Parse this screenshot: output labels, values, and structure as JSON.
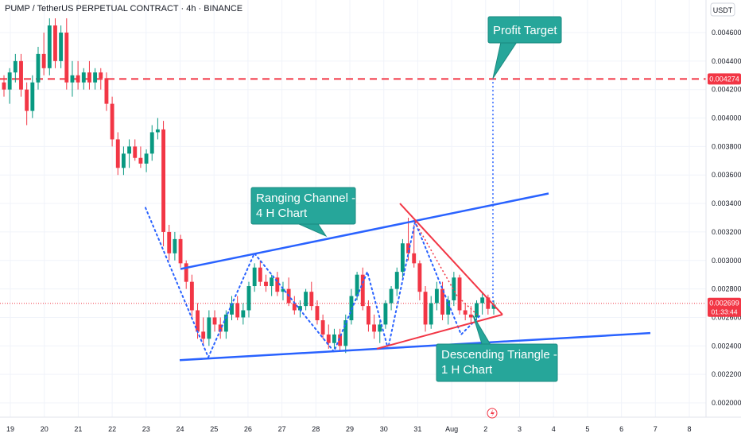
{
  "header": {
    "title": "PUMP / TetherUS PERPETUAL CONTRACT · 4h · BINANCE",
    "currency": "USDT"
  },
  "chart_data": {
    "type": "candlestick",
    "symbol": "PUMP / TetherUS PERPETUAL CONTRACT",
    "interval": "4h",
    "exchange": "BINANCE",
    "ylim": [
      0.00195,
      0.0048
    ],
    "x_ticks": [
      "19",
      "20",
      "21",
      "22",
      "23",
      "24",
      "25",
      "26",
      "27",
      "28",
      "29",
      "30",
      "31",
      "Aug",
      "2",
      "3",
      "4",
      "5",
      "6",
      "7",
      "8"
    ],
    "y_ticks": [
      "0.0046000",
      "0.0044000",
      "0.0042000",
      "0.0040000",
      "0.0038000",
      "0.0036000",
      "0.0034000",
      "0.0032000",
      "0.0030000",
      "0.0028000",
      "0.0026000",
      "0.0024000",
      "0.0022000",
      "0.0020000"
    ],
    "price_labels": {
      "target": "0.004274",
      "current": "0.002699",
      "countdown": "01:33:44"
    },
    "colors": {
      "up": "#089981",
      "down": "#f23645",
      "channel": "#2962ff",
      "triangle": "#f23645",
      "target_line": "#f23645",
      "callout": "#26a69a",
      "path_dots": "#2962ff",
      "price_tag": "#f23645"
    },
    "annotations": {
      "ranging_channel": "Ranging Channel -\n4 H Chart",
      "descending_triangle": "Descending Triangle -\n1 H Chart",
      "profit_target": "Profit Target"
    },
    "candles": [
      [
        0.00425,
        0.0043,
        0.00415,
        0.0042
      ],
      [
        0.0042,
        0.00435,
        0.0041,
        0.00432
      ],
      [
        0.00432,
        0.00445,
        0.00425,
        0.0044
      ],
      [
        0.0044,
        0.00445,
        0.00415,
        0.0042
      ],
      [
        0.0042,
        0.00425,
        0.00395,
        0.00405
      ],
      [
        0.00405,
        0.0043,
        0.004,
        0.00425
      ],
      [
        0.00425,
        0.0045,
        0.0042,
        0.00445
      ],
      [
        0.00445,
        0.0046,
        0.0043,
        0.00435
      ],
      [
        0.00435,
        0.0047,
        0.0043,
        0.00465
      ],
      [
        0.00465,
        0.0047,
        0.00435,
        0.0044
      ],
      [
        0.0044,
        0.00465,
        0.00435,
        0.0046
      ],
      [
        0.0046,
        0.0047,
        0.0042,
        0.00425
      ],
      [
        0.00425,
        0.0044,
        0.00415,
        0.0043
      ],
      [
        0.0043,
        0.0044,
        0.0042,
        0.00425
      ],
      [
        0.00425,
        0.00435,
        0.0042,
        0.00432
      ],
      [
        0.00432,
        0.0044,
        0.0042,
        0.00425
      ],
      [
        0.00425,
        0.00435,
        0.0042,
        0.00432
      ],
      [
        0.00432,
        0.00435,
        0.0042,
        0.00428
      ],
      [
        0.00428,
        0.00432,
        0.00405,
        0.0041
      ],
      [
        0.0041,
        0.00415,
        0.0038,
        0.00385
      ],
      [
        0.00385,
        0.0039,
        0.0036,
        0.00365
      ],
      [
        0.00365,
        0.0038,
        0.0036,
        0.00375
      ],
      [
        0.00375,
        0.00385,
        0.00365,
        0.0038
      ],
      [
        0.0038,
        0.00385,
        0.0037,
        0.00372
      ],
      [
        0.00372,
        0.0038,
        0.00365,
        0.00368
      ],
      [
        0.00368,
        0.00378,
        0.00362,
        0.00375
      ],
      [
        0.00375,
        0.00395,
        0.0037,
        0.0039
      ],
      [
        0.0039,
        0.004,
        0.00385,
        0.00392
      ],
      [
        0.00392,
        0.00398,
        0.0031,
        0.0032
      ],
      [
        0.0032,
        0.00325,
        0.003,
        0.00305
      ],
      [
        0.00305,
        0.0032,
        0.003,
        0.00315
      ],
      [
        0.00315,
        0.00318,
        0.00295,
        0.00298
      ],
      [
        0.00298,
        0.003,
        0.0028,
        0.00285
      ],
      [
        0.00285,
        0.0029,
        0.0026,
        0.00265
      ],
      [
        0.00265,
        0.0027,
        0.00245,
        0.0025
      ],
      [
        0.0025,
        0.0026,
        0.0024,
        0.00245
      ],
      [
        0.00245,
        0.00265,
        0.0024,
        0.0026
      ],
      [
        0.0026,
        0.00265,
        0.0025,
        0.00255
      ],
      [
        0.00255,
        0.0026,
        0.00245,
        0.0025
      ],
      [
        0.0025,
        0.00265,
        0.00245,
        0.00262
      ],
      [
        0.00262,
        0.00275,
        0.00258,
        0.0027
      ],
      [
        0.0027,
        0.00275,
        0.00258,
        0.0026
      ],
      [
        0.0026,
        0.0027,
        0.00255,
        0.00265
      ],
      [
        0.00265,
        0.00285,
        0.0026,
        0.00282
      ],
      [
        0.00282,
        0.00298,
        0.00278,
        0.00295
      ],
      [
        0.00295,
        0.003,
        0.00282,
        0.00285
      ],
      [
        0.00285,
        0.0029,
        0.00278,
        0.00282
      ],
      [
        0.00282,
        0.0029,
        0.00275,
        0.00288
      ],
      [
        0.00288,
        0.00292,
        0.00275,
        0.00278
      ],
      [
        0.00278,
        0.00285,
        0.00272,
        0.0028
      ],
      [
        0.0028,
        0.00288,
        0.00268,
        0.0027
      ],
      [
        0.0027,
        0.00275,
        0.00262,
        0.00265
      ],
      [
        0.00265,
        0.00272,
        0.0026,
        0.00268
      ],
      [
        0.00268,
        0.0028,
        0.00265,
        0.00278
      ],
      [
        0.00278,
        0.00285,
        0.00265,
        0.00268
      ],
      [
        0.00268,
        0.00272,
        0.00255,
        0.00258
      ],
      [
        0.00258,
        0.00262,
        0.00245,
        0.00248
      ],
      [
        0.00248,
        0.00255,
        0.00238,
        0.00242
      ],
      [
        0.00242,
        0.00252,
        0.00238,
        0.00248
      ],
      [
        0.00248,
        0.00252,
        0.00236,
        0.0024
      ],
      [
        0.0024,
        0.00262,
        0.00235,
        0.00258
      ],
      [
        0.00258,
        0.0028,
        0.00255,
        0.00275
      ],
      [
        0.00275,
        0.00292,
        0.00272,
        0.0029
      ],
      [
        0.0029,
        0.00295,
        0.00265,
        0.00268
      ],
      [
        0.00268,
        0.00272,
        0.0025,
        0.00255
      ],
      [
        0.00255,
        0.00262,
        0.00245,
        0.0025
      ],
      [
        0.0025,
        0.00258,
        0.00242,
        0.00255
      ],
      [
        0.00255,
        0.00272,
        0.00252,
        0.0027
      ],
      [
        0.0027,
        0.00282,
        0.00265,
        0.0028
      ],
      [
        0.0028,
        0.00295,
        0.00275,
        0.00292
      ],
      [
        0.00292,
        0.00315,
        0.00288,
        0.00312
      ],
      [
        0.00312,
        0.0033,
        0.003,
        0.00305
      ],
      [
        0.00305,
        0.00325,
        0.00295,
        0.00298
      ],
      [
        0.00298,
        0.003,
        0.00272,
        0.00278
      ],
      [
        0.00278,
        0.00282,
        0.0025,
        0.00255
      ],
      [
        0.00255,
        0.00275,
        0.00252,
        0.0027
      ],
      [
        0.0027,
        0.00285,
        0.00265,
        0.0028
      ],
      [
        0.0028,
        0.00285,
        0.00258,
        0.00262
      ],
      [
        0.00262,
        0.00275,
        0.00255,
        0.00272
      ],
      [
        0.00272,
        0.00292,
        0.00268,
        0.00288
      ],
      [
        0.00288,
        0.0029,
        0.00262,
        0.00265
      ],
      [
        0.00265,
        0.0027,
        0.00258,
        0.00262
      ],
      [
        0.00262,
        0.00268,
        0.00255,
        0.0026
      ],
      [
        0.0026,
        0.00272,
        0.00258,
        0.0027
      ],
      [
        0.0027,
        0.00278,
        0.00262,
        0.00274
      ],
      [
        0.00274,
        0.00276,
        0.00262,
        0.00266
      ],
      [
        0.00266,
        0.00272,
        0.00262,
        0.00269
      ]
    ]
  }
}
